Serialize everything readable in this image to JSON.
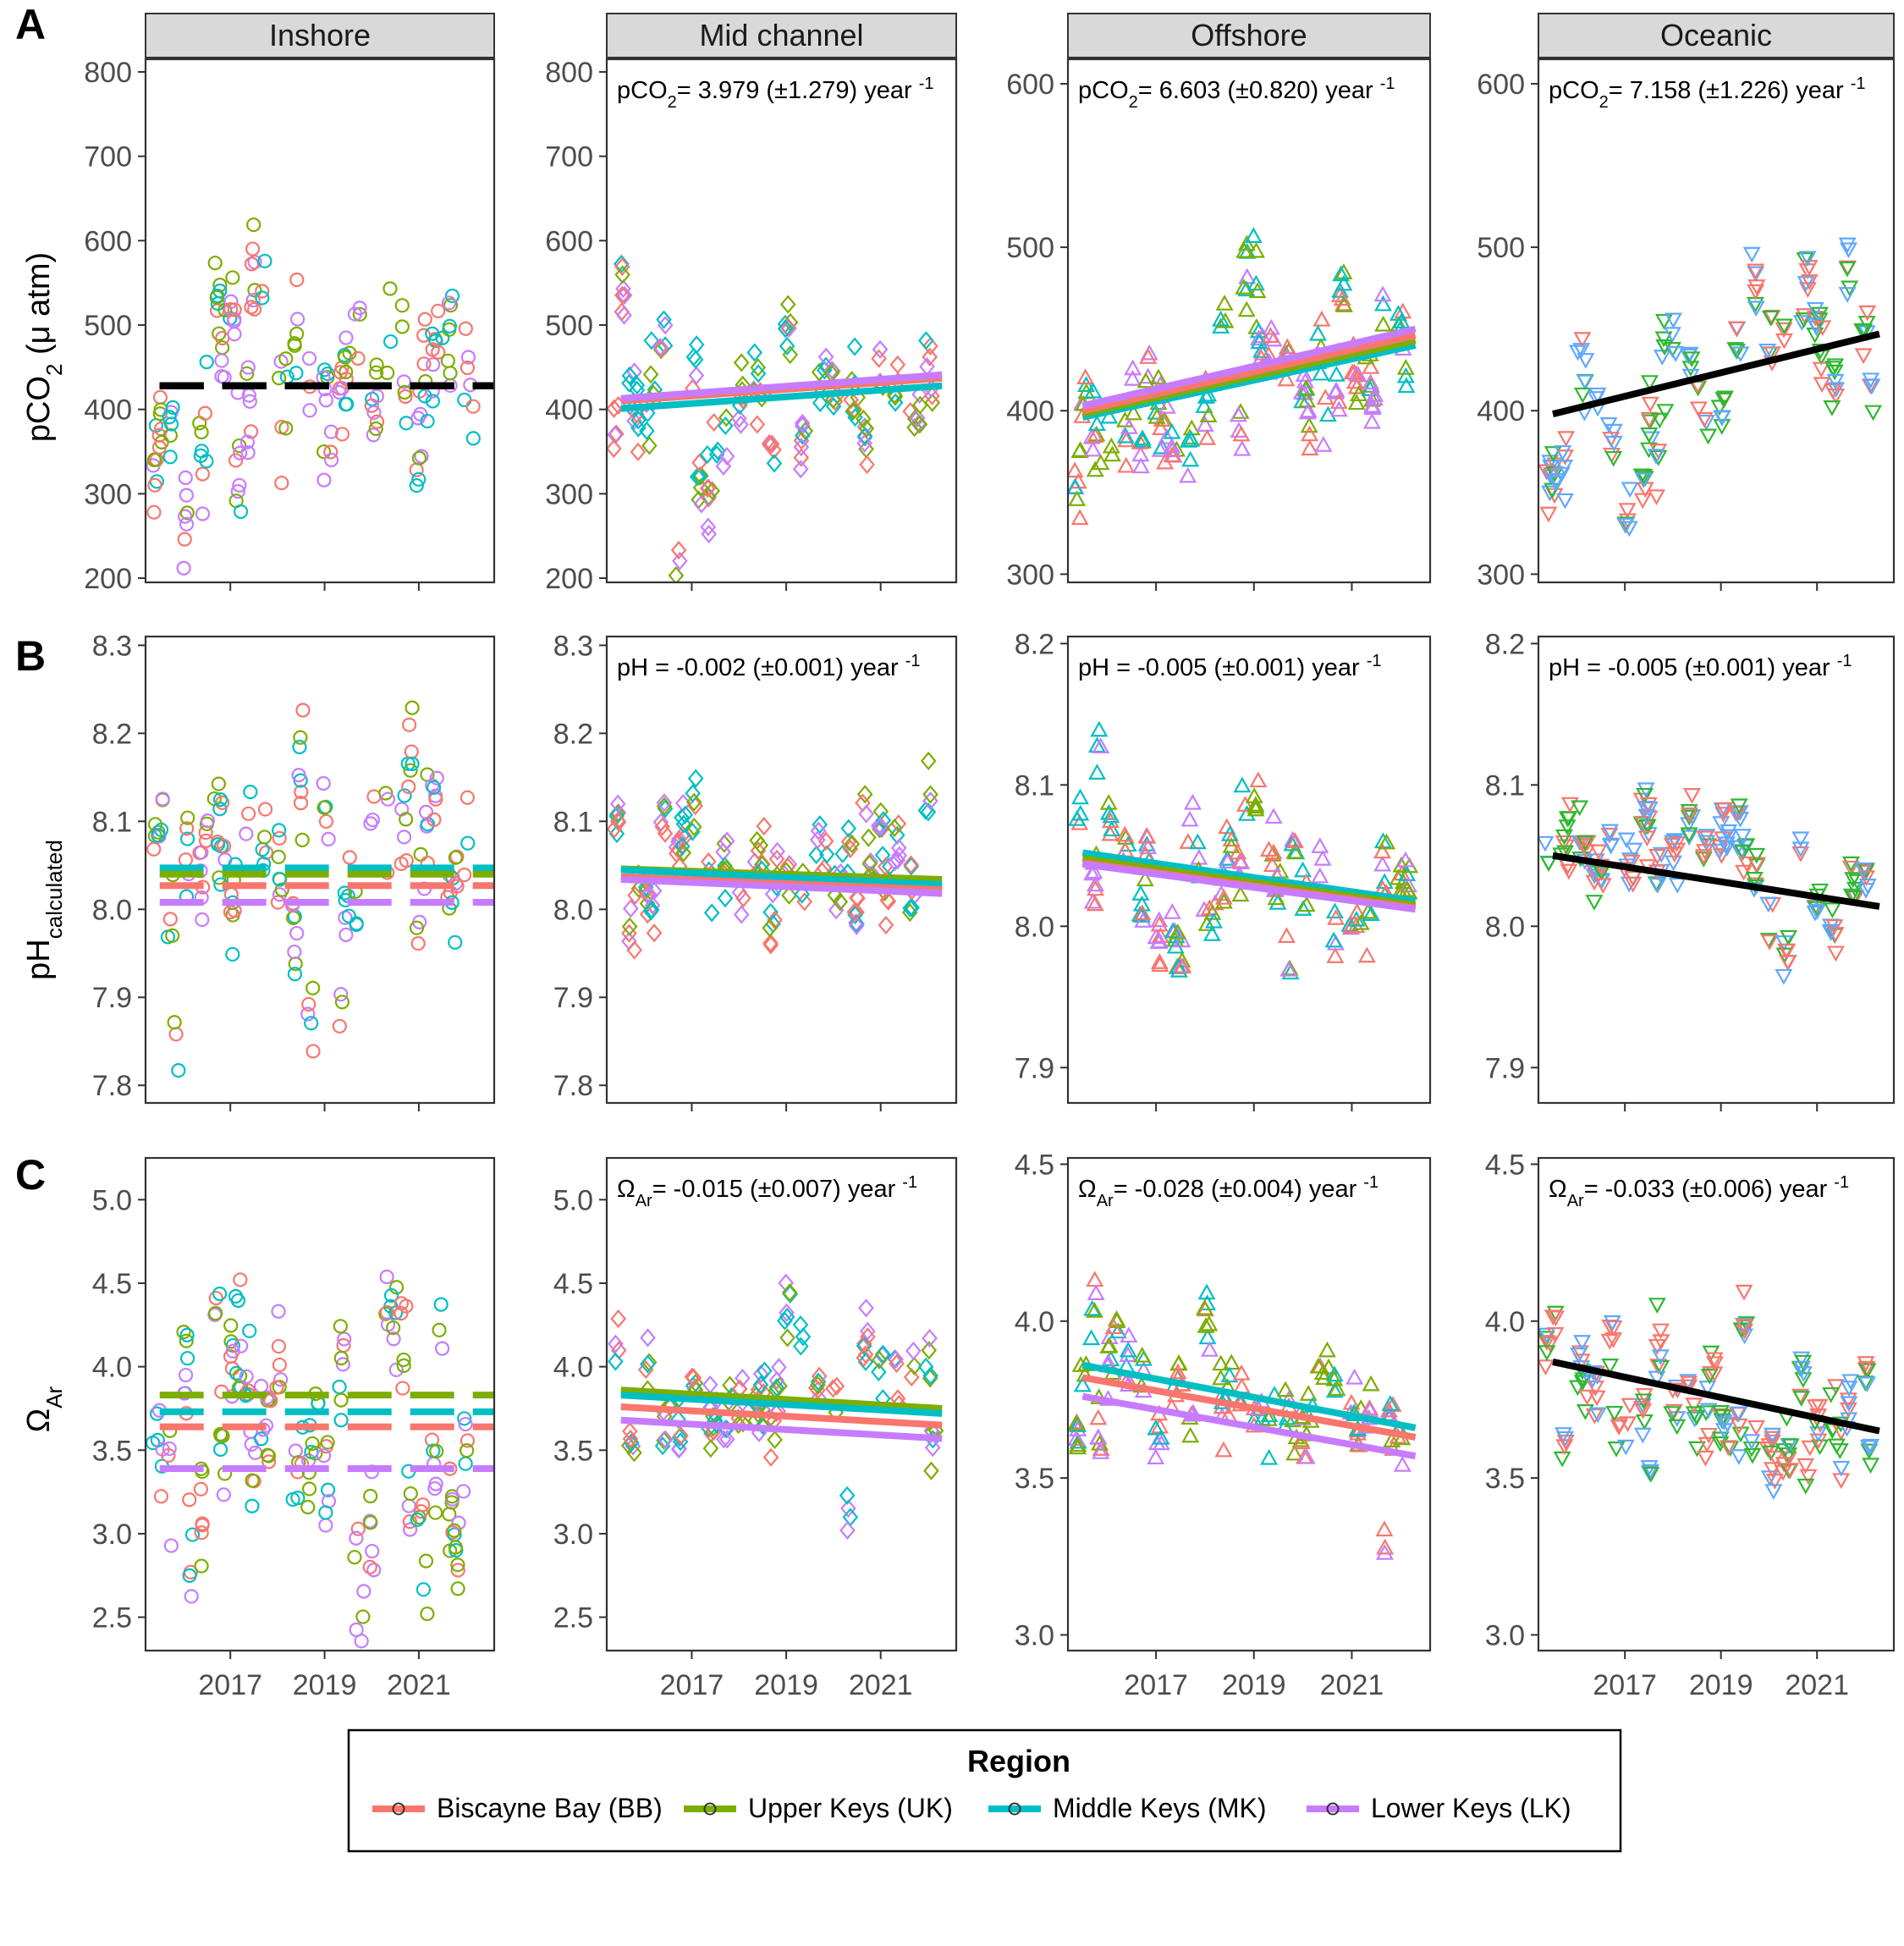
{
  "legend": {
    "title": "Region",
    "items": [
      {
        "label": "Biscayne Bay (BB)",
        "color": "#F8766D"
      },
      {
        "label": "Upper Keys (UK)",
        "color": "#7CAE00"
      },
      {
        "label": "Middle Keys (MK)",
        "color": "#00BFC4"
      },
      {
        "label": "Lower Keys (LK)",
        "color": "#C77CFF"
      }
    ]
  },
  "oceanic_colors": {
    "BB": "#F8766D",
    "UK": "#2EB82E",
    "MK_LK": "#5FA8FF"
  },
  "rows": [
    {
      "letter": "A",
      "ylabel": "pCO",
      "ylabel_sub": "2",
      "ylabel_tail": " (μ atm)"
    },
    {
      "letter": "B",
      "ylabel": "pH",
      "ylabel_sub": "calculated",
      "ylabel_tail": ""
    },
    {
      "letter": "C",
      "ylabel": "Ω",
      "ylabel_sub": "Ar",
      "ylabel_tail": ""
    }
  ],
  "columns": [
    "Inshore",
    "Mid channel",
    "Offshore",
    "Oceanic"
  ],
  "x_tick_labels": [
    "2017",
    "2019",
    "2021"
  ],
  "chart_data": [
    {
      "type": "scatter",
      "row": "A",
      "zone": "Inshore",
      "ylim": [
        195,
        815
      ],
      "yticks": [
        200,
        300,
        400,
        500,
        600,
        700,
        800
      ],
      "marker": "circle",
      "mean_lines": [
        {
          "region": "BB",
          "value": 428
        },
        {
          "region": "UK",
          "value": 428
        },
        {
          "region": "MK",
          "value": 428
        },
        {
          "region": "LK",
          "value": 428
        }
      ],
      "mean_style": "black",
      "annotation": null,
      "trends": []
    },
    {
      "type": "scatter",
      "row": "A",
      "zone": "Mid channel",
      "ylim": [
        195,
        815
      ],
      "yticks": [
        200,
        300,
        400,
        500,
        600,
        700,
        800
      ],
      "marker": "diamond",
      "annotation": {
        "pre": "pCO",
        "sub": "2",
        "post": "= 3.979 (±1.279) year ",
        "sup": "-1"
      },
      "trends": [
        {
          "region": "MK",
          "x": [
            2015.5,
            2022.3
          ],
          "y": [
            401,
            428
          ]
        },
        {
          "region": "BB",
          "x": [
            2015.5,
            2022.3
          ],
          "y": [
            410,
            437
          ]
        },
        {
          "region": "LK",
          "x": [
            2015.5,
            2022.3
          ],
          "y": [
            413,
            441
          ]
        }
      ]
    },
    {
      "type": "scatter",
      "row": "A",
      "zone": "Offshore",
      "ylim": [
        295,
        615
      ],
      "yticks": [
        300,
        400,
        500,
        600
      ],
      "marker": "triangle-up",
      "annotation": {
        "pre": "pCO",
        "sub": "2",
        "post": "= 6.603 (±0.820) year ",
        "sup": "-1"
      },
      "trends": [
        {
          "region": "MK",
          "x": [
            2015.5,
            2022.3
          ],
          "y": [
            396,
            440
          ]
        },
        {
          "region": "UK",
          "x": [
            2015.5,
            2022.3
          ],
          "y": [
            398,
            443
          ]
        },
        {
          "region": "BB",
          "x": [
            2015.5,
            2022.3
          ],
          "y": [
            400,
            446
          ]
        },
        {
          "region": "LK",
          "x": [
            2015.5,
            2022.3
          ],
          "y": [
            403,
            450
          ]
        }
      ]
    },
    {
      "type": "scatter",
      "row": "A",
      "zone": "Oceanic",
      "ylim": [
        295,
        615
      ],
      "yticks": [
        300,
        400,
        500,
        600
      ],
      "marker": "triangle-down",
      "annotation": {
        "pre": "pCO",
        "sub": "2",
        "post": "= 7.158 (±1.226) year ",
        "sup": "-1"
      },
      "trends": [
        {
          "region": "ALL",
          "x": [
            2015.5,
            2022.3
          ],
          "y": [
            398,
            447
          ]
        }
      ]
    },
    {
      "type": "scatter",
      "row": "B",
      "zone": "Inshore",
      "ylim": [
        7.78,
        8.31
      ],
      "yticks": [
        7.8,
        7.9,
        8.0,
        8.1,
        8.2,
        8.3
      ],
      "marker": "circle",
      "mean_lines": [
        {
          "region": "MK",
          "value": 8.047
        },
        {
          "region": "UK",
          "value": 8.04
        },
        {
          "region": "BB",
          "value": 8.027
        },
        {
          "region": "LK",
          "value": 8.008
        }
      ],
      "mean_style": "colored",
      "annotation": null,
      "trends": []
    },
    {
      "type": "scatter",
      "row": "B",
      "zone": "Mid channel",
      "ylim": [
        7.78,
        8.31
      ],
      "yticks": [
        7.8,
        7.9,
        8.0,
        8.1,
        8.2,
        8.3
      ],
      "marker": "diamond",
      "annotation": {
        "pre": "pH = -0.002 (±0.001) year ",
        "sub": "",
        "post": "",
        "sup": "-1"
      },
      "trends": [
        {
          "region": "UK",
          "x": [
            2015.5,
            2022.3
          ],
          "y": [
            8.046,
            8.034
          ]
        },
        {
          "region": "MK",
          "x": [
            2015.5,
            2022.3
          ],
          "y": [
            8.045,
            8.028
          ]
        },
        {
          "region": "BB",
          "x": [
            2015.5,
            2022.3
          ],
          "y": [
            8.037,
            8.022
          ]
        },
        {
          "region": "LK",
          "x": [
            2015.5,
            2022.3
          ],
          "y": [
            8.034,
            8.018
          ]
        }
      ]
    },
    {
      "type": "scatter",
      "row": "B",
      "zone": "Offshore",
      "ylim": [
        7.875,
        8.205
      ],
      "yticks": [
        7.9,
        8.0,
        8.1,
        8.2
      ],
      "marker": "triangle-up",
      "annotation": {
        "pre": "pH = -0.005 (±0.001) year ",
        "sub": "",
        "post": "",
        "sup": "-1"
      },
      "trends": [
        {
          "region": "MK",
          "x": [
            2015.5,
            2022.3
          ],
          "y": [
            8.052,
            8.018
          ]
        },
        {
          "region": "UK",
          "x": [
            2015.5,
            2022.3
          ],
          "y": [
            8.048,
            8.015
          ]
        },
        {
          "region": "BB",
          "x": [
            2015.5,
            2022.3
          ],
          "y": [
            8.045,
            8.013
          ]
        },
        {
          "region": "LK",
          "x": [
            2015.5,
            2022.3
          ],
          "y": [
            8.044,
            8.012
          ]
        }
      ]
    },
    {
      "type": "scatter",
      "row": "B",
      "zone": "Oceanic",
      "ylim": [
        7.875,
        8.205
      ],
      "yticks": [
        7.9,
        8.0,
        8.1,
        8.2
      ],
      "marker": "triangle-down",
      "annotation": {
        "pre": "pH = -0.005 (±0.001) year ",
        "sub": "",
        "post": "",
        "sup": "-1"
      },
      "trends": [
        {
          "region": "ALL",
          "x": [
            2015.5,
            2022.3
          ],
          "y": [
            8.05,
            8.014
          ]
        }
      ]
    },
    {
      "type": "scatter",
      "row": "C",
      "zone": "Inshore",
      "ylim": [
        2.3,
        5.25
      ],
      "yticks": [
        2.5,
        3.0,
        3.5,
        4.0,
        4.5,
        5.0
      ],
      "marker": "circle",
      "mean_lines": [
        {
          "region": "UK",
          "value": 3.83
        },
        {
          "region": "MK",
          "value": 3.73
        },
        {
          "region": "BB",
          "value": 3.64
        },
        {
          "region": "LK",
          "value": 3.39
        }
      ],
      "mean_style": "colored",
      "annotation": null,
      "trends": []
    },
    {
      "type": "scatter",
      "row": "C",
      "zone": "Mid channel",
      "ylim": [
        2.3,
        5.25
      ],
      "yticks": [
        2.5,
        3.0,
        3.5,
        4.0,
        4.5,
        5.0
      ],
      "marker": "diamond",
      "annotation": {
        "pre": "Ω",
        "sub": "Ar",
        "post": "= -0.015 (±0.007) year ",
        "sup": "-1"
      },
      "trends": [
        {
          "region": "UK",
          "x": [
            2015.5,
            2022.3
          ],
          "y": [
            3.86,
            3.75
          ]
        },
        {
          "region": "MK",
          "x": [
            2015.5,
            2022.3
          ],
          "y": [
            3.83,
            3.72
          ]
        },
        {
          "region": "BB",
          "x": [
            2015.5,
            2022.3
          ],
          "y": [
            3.76,
            3.65
          ]
        },
        {
          "region": "LK",
          "x": [
            2015.5,
            2022.3
          ],
          "y": [
            3.68,
            3.57
          ]
        }
      ]
    },
    {
      "type": "scatter",
      "row": "C",
      "zone": "Offshore",
      "ylim": [
        2.95,
        4.52
      ],
      "yticks": [
        3.0,
        3.5,
        4.0,
        4.5
      ],
      "marker": "triangle-up",
      "annotation": {
        "pre": "Ω",
        "sub": "Ar",
        "post": "= -0.028 (±0.004) year ",
        "sup": "-1"
      },
      "trends": [
        {
          "region": "MK",
          "x": [
            2015.5,
            2022.3
          ],
          "y": [
            3.86,
            3.66
          ]
        },
        {
          "region": "BB",
          "x": [
            2015.5,
            2022.3
          ],
          "y": [
            3.82,
            3.63
          ]
        },
        {
          "region": "LK",
          "x": [
            2015.5,
            2022.3
          ],
          "y": [
            3.76,
            3.57
          ]
        }
      ]
    },
    {
      "type": "scatter",
      "row": "C",
      "zone": "Oceanic",
      "ylim": [
        2.95,
        4.52
      ],
      "yticks": [
        3.0,
        3.5,
        4.0,
        4.5
      ],
      "marker": "triangle-down",
      "annotation": {
        "pre": "Ω",
        "sub": "Ar",
        "post": "= -0.033 (±0.006) year ",
        "sup": "-1"
      },
      "trends": [
        {
          "region": "ALL",
          "x": [
            2015.5,
            2022.3
          ],
          "y": [
            3.87,
            3.65
          ]
        }
      ]
    }
  ]
}
